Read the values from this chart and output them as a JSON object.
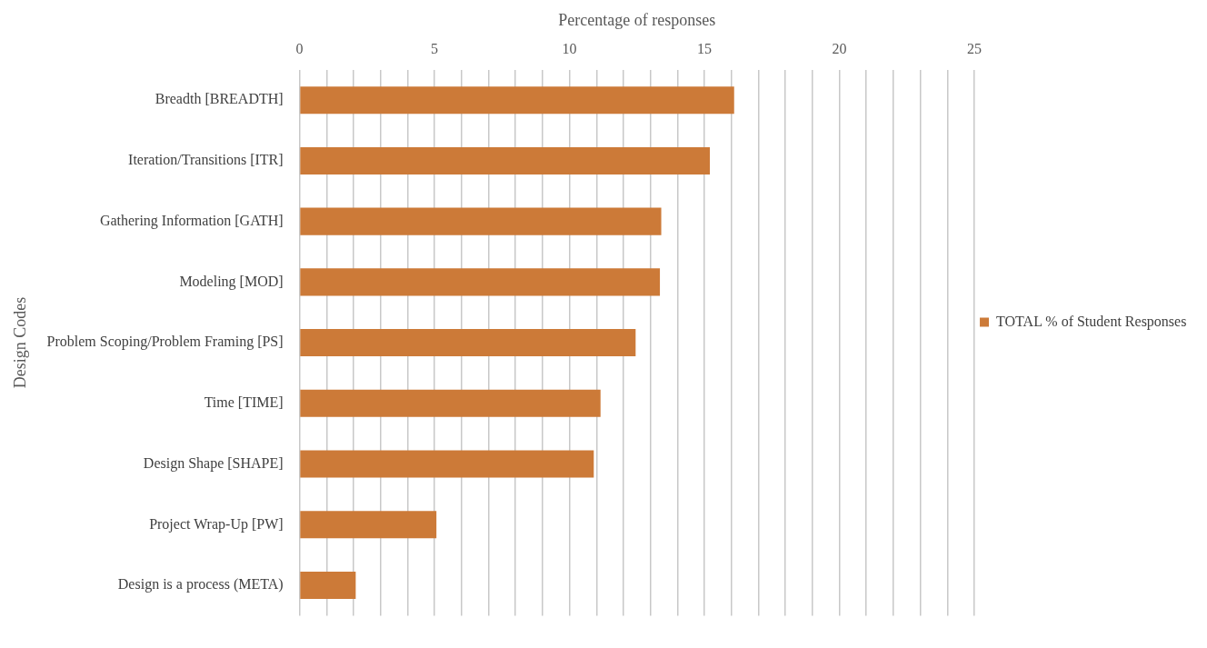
{
  "chart_data": {
    "type": "bar",
    "orientation": "horizontal",
    "xlabel": "Percentage of responses",
    "ylabel": "Design Codes",
    "categories": [
      "Breadth [BREADTH]",
      "Iteration/Transitions [ITR]",
      "Gathering Information [GATH]",
      "Modeling [MOD]",
      "Problem Scoping/Problem Framing [PS]",
      "Time [TIME]",
      "Design Shape [SHAPE]",
      "Project Wrap-Up [PW]",
      "Design is a process (META)"
    ],
    "series": [
      {
        "name": "TOTAL % of Student Responses",
        "color": "#cc7a38",
        "values": [
          16.1,
          15.2,
          13.4,
          13.35,
          12.45,
          11.15,
          10.9,
          5.07,
          2.08
        ]
      }
    ],
    "xlim": [
      0,
      25
    ],
    "xticks": [
      0,
      {
        "value": 1,
        "label": null
      },
      {
        "value": 2,
        "label": null
      },
      {
        "value": 3,
        "label": null
      },
      {
        "value": 4,
        "label": null
      },
      5,
      {
        "value": 6,
        "label": null
      },
      {
        "value": 7,
        "label": null
      },
      {
        "value": 8,
        "label": null
      },
      {
        "value": 9,
        "label": null
      },
      10,
      {
        "value": 11,
        "label": null
      },
      {
        "value": 12,
        "label": null
      },
      {
        "value": 13,
        "label": null
      },
      {
        "value": 14,
        "label": null
      },
      15,
      {
        "value": 16,
        "label": null
      },
      {
        "value": 17,
        "label": null
      },
      {
        "value": 18,
        "label": null
      },
      {
        "value": 19,
        "label": null
      },
      20,
      {
        "value": 21,
        "label": null
      },
      {
        "value": 22,
        "label": null
      },
      {
        "value": 23,
        "label": null
      },
      {
        "value": 24,
        "label": null
      },
      25
    ],
    "grid": "x",
    "legend": "right"
  }
}
